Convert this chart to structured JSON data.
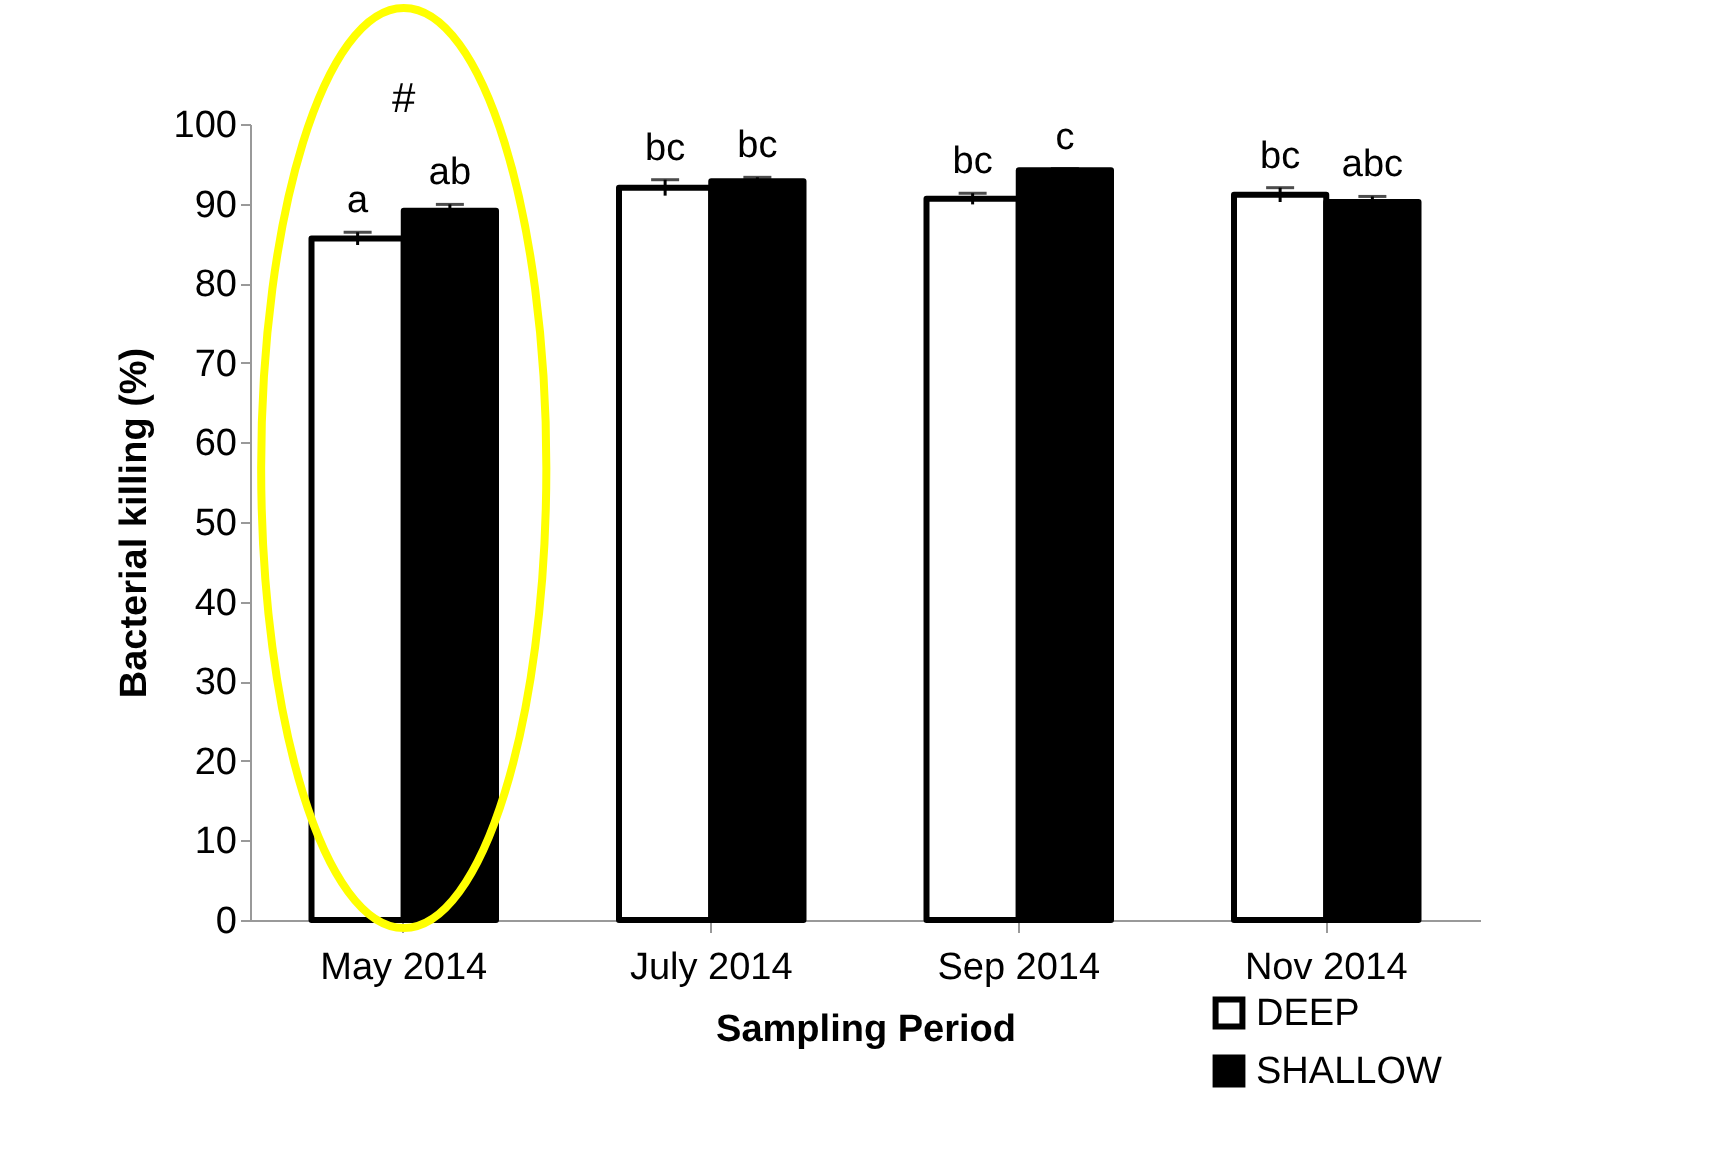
{
  "chart_data": {
    "type": "bar",
    "xlabel": "Sampling Period",
    "ylabel": "Bacterial killing (%)",
    "categories": [
      "May 2014",
      "July 2014",
      "Sep 2014",
      "Nov 2014"
    ],
    "series": [
      {
        "name": "DEEP",
        "color": "#ffffff",
        "values": [
          85.6,
          92.0,
          90.6,
          91.1
        ],
        "errors": [
          0.8,
          1.0,
          0.7,
          0.9
        ],
        "value_labels": [
          "a",
          "bc",
          "bc",
          "bc"
        ]
      },
      {
        "name": "SHALLOW",
        "color": "#000000",
        "values": [
          89.1,
          92.8,
          94.2,
          90.2
        ],
        "errors": [
          0.8,
          0.5,
          0.2,
          0.7
        ],
        "value_labels": [
          "ab",
          "bc",
          "c",
          "abc"
        ]
      }
    ],
    "annotations": [
      "#"
    ],
    "ylim": [
      0,
      100
    ],
    "yticks": [
      0,
      10,
      20,
      30,
      40,
      50,
      60,
      70,
      80,
      90,
      100
    ],
    "grid": false,
    "legend": "bottom right"
  }
}
